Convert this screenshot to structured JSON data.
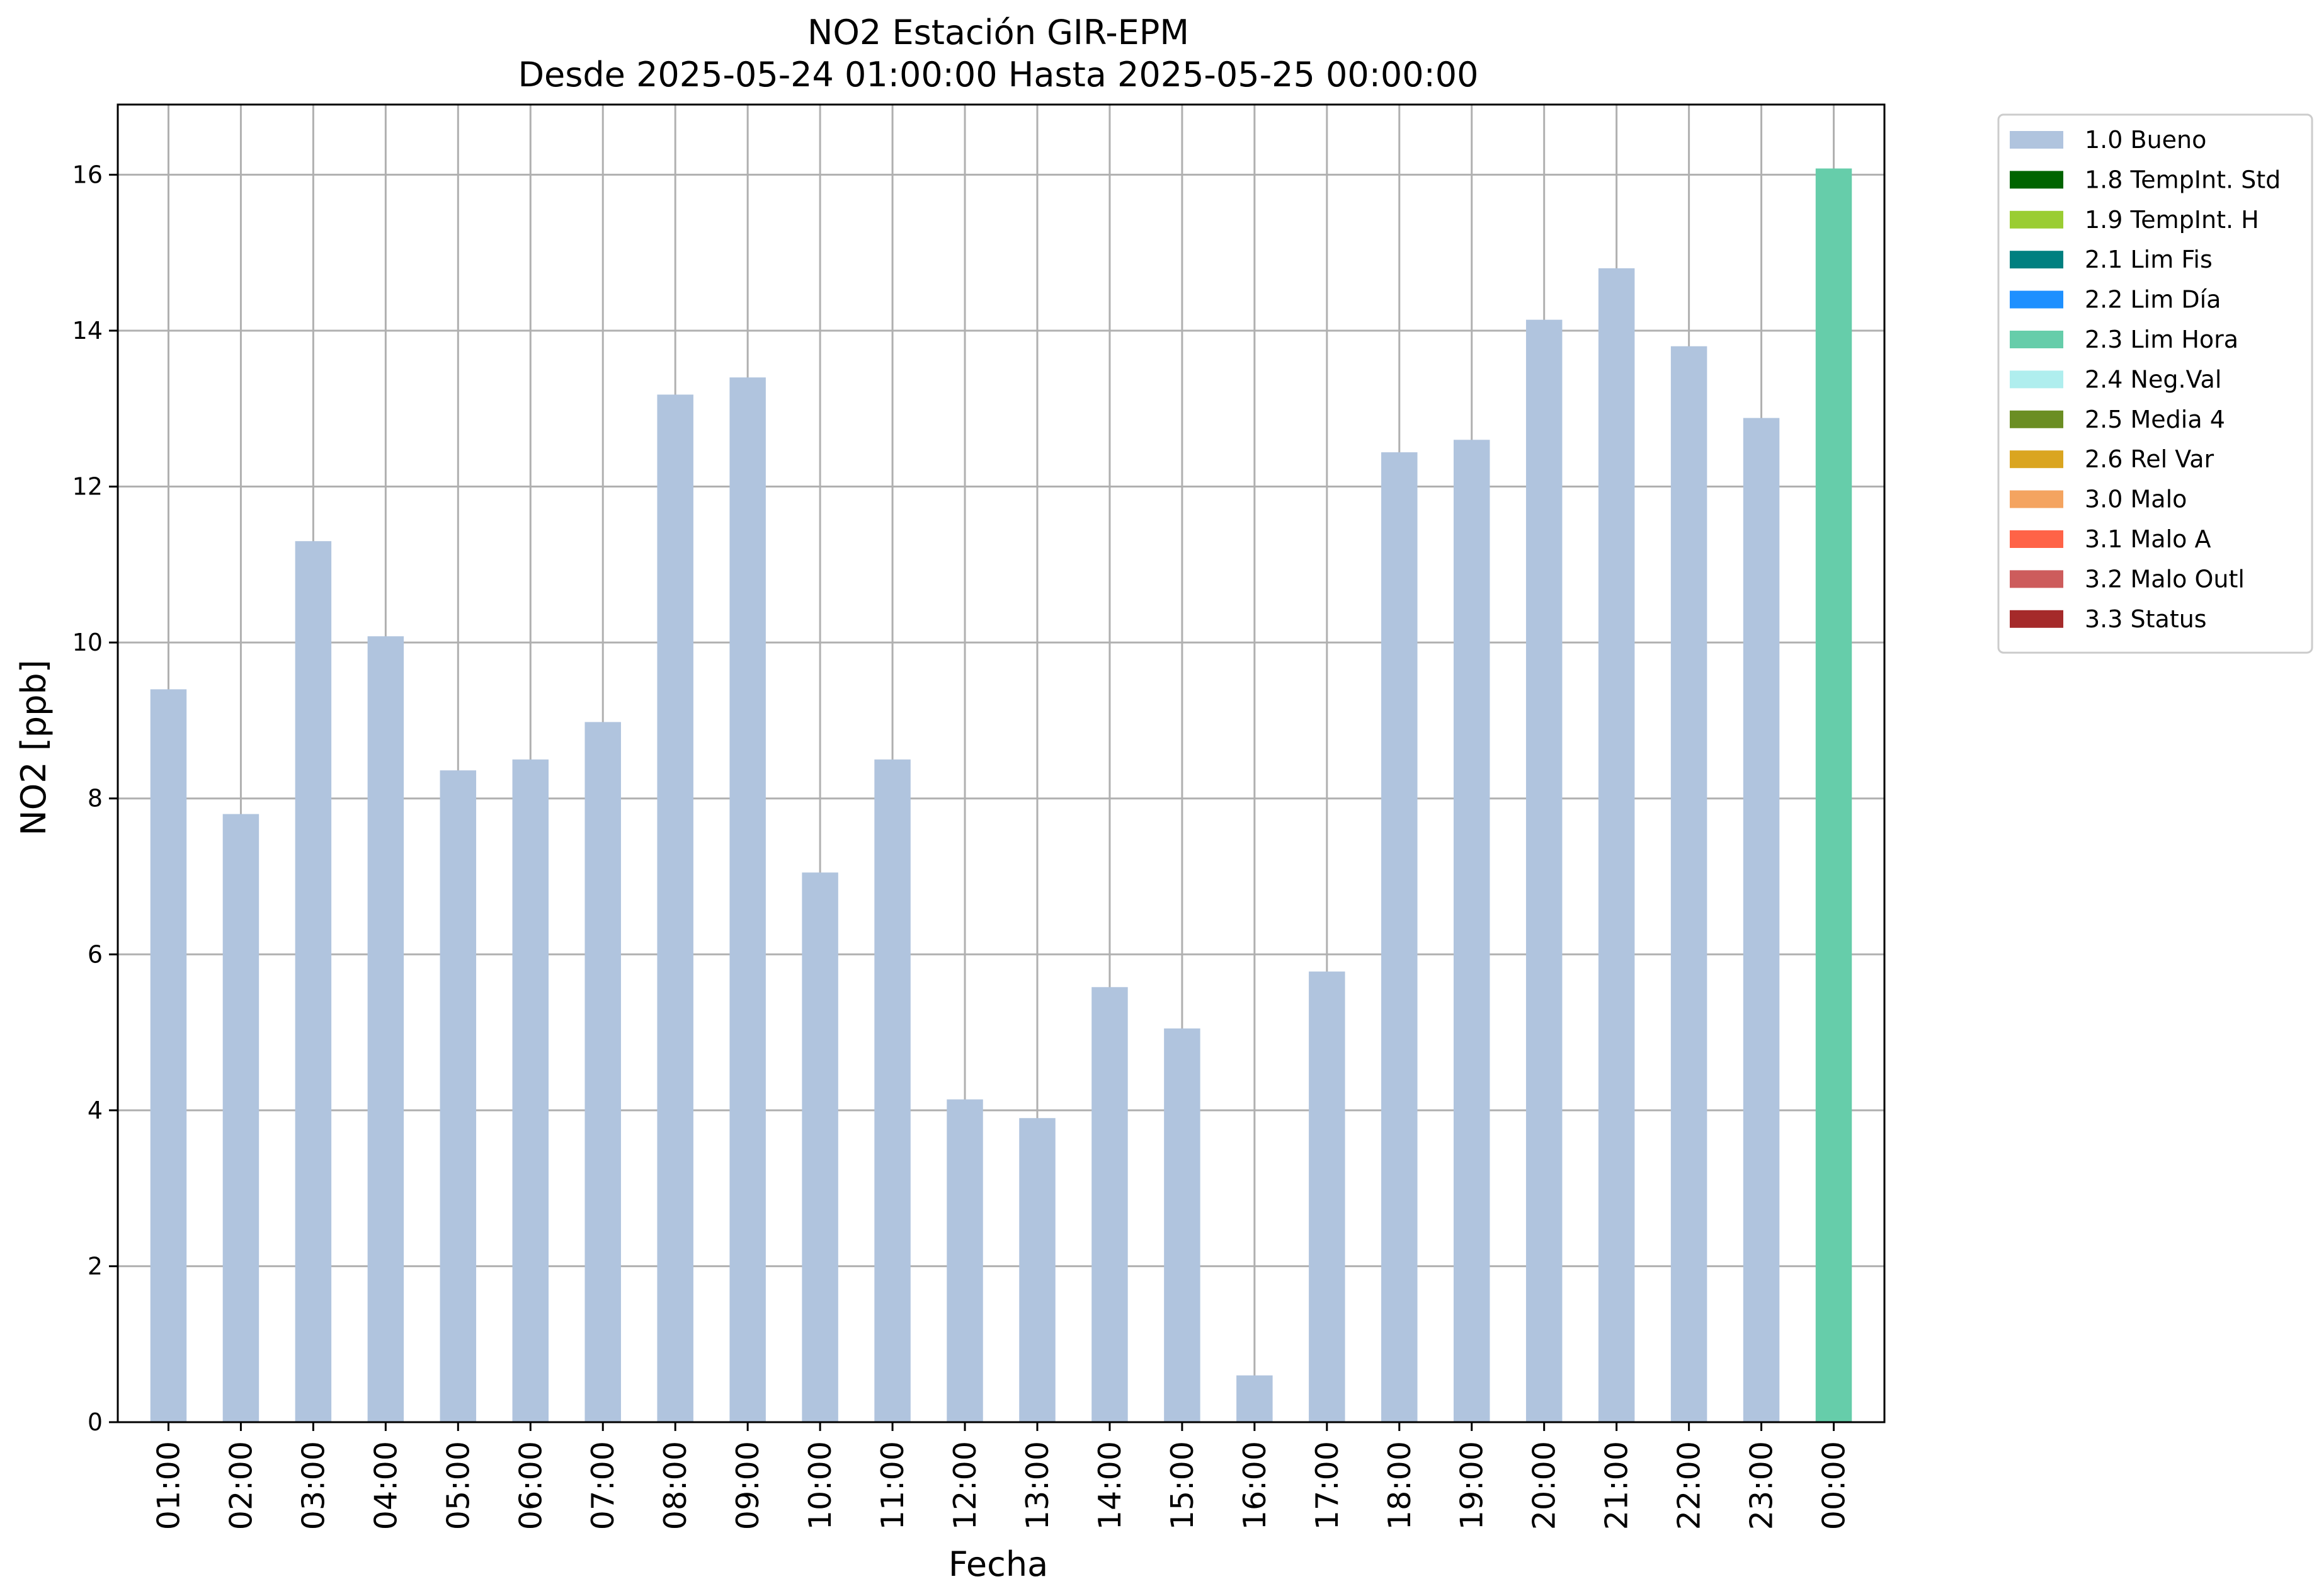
{
  "chart_data": {
    "type": "bar",
    "title": "NO2 Estación GIR-EPM",
    "subtitle": "Desde 2025-05-24 01:00:00 Hasta 2025-05-25 00:00:00",
    "xlabel": "Fecha",
    "ylabel": "NO2 [ppb]",
    "ylim": [
      0,
      16.9
    ],
    "yticks": [
      0,
      2,
      4,
      6,
      8,
      10,
      12,
      14,
      16
    ],
    "grid": true,
    "legend_position": "outside-right-top",
    "categories": [
      "01:00",
      "02:00",
      "03:00",
      "04:00",
      "05:00",
      "06:00",
      "07:00",
      "08:00",
      "09:00",
      "10:00",
      "11:00",
      "12:00",
      "13:00",
      "14:00",
      "15:00",
      "16:00",
      "17:00",
      "18:00",
      "19:00",
      "20:00",
      "21:00",
      "22:00",
      "23:00",
      "00:00"
    ],
    "values": [
      9.4,
      7.8,
      11.3,
      10.08,
      8.36,
      8.5,
      8.98,
      13.18,
      13.4,
      7.05,
      8.5,
      4.14,
      3.9,
      5.58,
      5.05,
      0.6,
      5.78,
      12.44,
      12.6,
      14.14,
      14.8,
      13.8,
      12.88,
      16.08
    ],
    "flags": [
      "1.0 Bueno",
      "1.0 Bueno",
      "1.0 Bueno",
      "1.0 Bueno",
      "1.0 Bueno",
      "1.0 Bueno",
      "1.0 Bueno",
      "1.0 Bueno",
      "1.0 Bueno",
      "1.0 Bueno",
      "1.0 Bueno",
      "1.0 Bueno",
      "1.0 Bueno",
      "1.0 Bueno",
      "1.0 Bueno",
      "1.0 Bueno",
      "1.0 Bueno",
      "1.0 Bueno",
      "1.0 Bueno",
      "1.0 Bueno",
      "1.0 Bueno",
      "1.0 Bueno",
      "1.0 Bueno",
      "2.3 Lim Hora"
    ],
    "legend": [
      {
        "label": "1.0 Bueno",
        "color": "#b0c4de"
      },
      {
        "label": "1.8 TempInt. Std",
        "color": "#006400"
      },
      {
        "label": "1.9 TempInt. H",
        "color": "#9acd32"
      },
      {
        "label": "2.1 Lim Fis",
        "color": "#008080"
      },
      {
        "label": "2.2 Lim Día",
        "color": "#1e90ff"
      },
      {
        "label": "2.3 Lim Hora",
        "color": "#66cdaa"
      },
      {
        "label": "2.4 Neg.Val",
        "color": "#afeeee"
      },
      {
        "label": "2.5 Media 4",
        "color": "#6b8e23"
      },
      {
        "label": "2.6 Rel Var",
        "color": "#daa520"
      },
      {
        "label": "3.0 Malo",
        "color": "#f4a460"
      },
      {
        "label": "3.1 Malo A",
        "color": "#ff6347"
      },
      {
        "label": "3.2 Malo Outl",
        "color": "#cd5c5c"
      },
      {
        "label": "3.3 Status",
        "color": "#a52a2a"
      }
    ]
  }
}
